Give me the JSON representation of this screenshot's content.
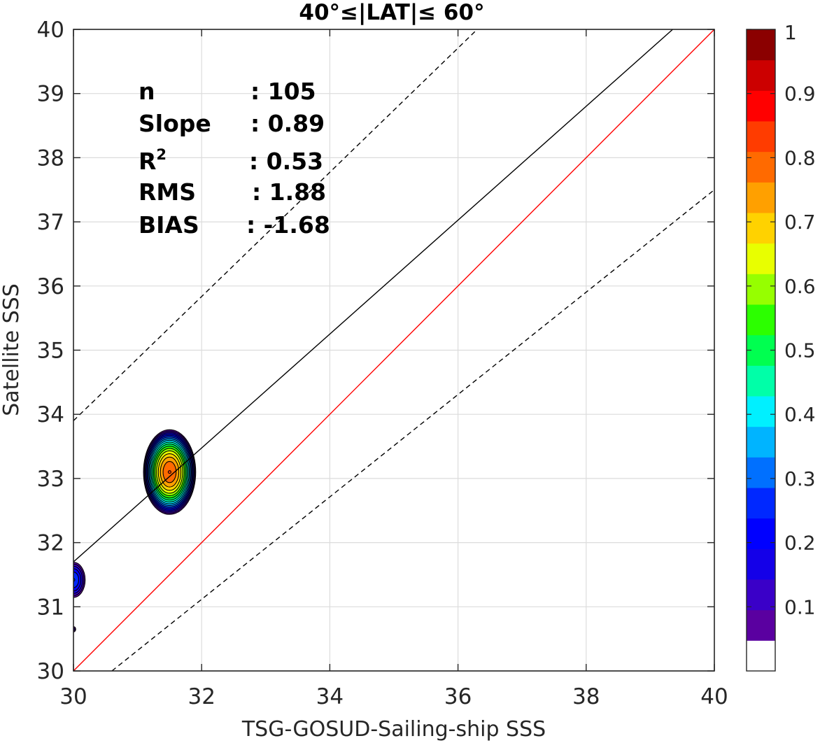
{
  "chart_data": {
    "type": "heatmap",
    "title": "40°≤|LAT|≤ 60°",
    "xlabel": "TSG-GOSUD-Sailing-ship SSS",
    "ylabel": "Satellite SSS",
    "xlim": [
      30,
      40
    ],
    "ylim": [
      30,
      40
    ],
    "xticks": [
      "30",
      "32",
      "34",
      "36",
      "38",
      "40"
    ],
    "yticks": [
      "30",
      "31",
      "32",
      "33",
      "34",
      "35",
      "36",
      "37",
      "38",
      "39",
      "40"
    ],
    "grid": true,
    "stats": [
      {
        "label": "n",
        "value": ": 105"
      },
      {
        "label": "Slope",
        "value": ": 0.89"
      },
      {
        "label": "R",
        "sup": "2",
        "value": ": 0.53"
      },
      {
        "label": "RMS",
        "value": ": 1.88"
      },
      {
        "label": "BIAS",
        "value": ": -1.68"
      }
    ],
    "lines": [
      {
        "name": "one-to-one",
        "style": "solid",
        "color": "#ff0000",
        "points": [
          [
            30,
            30
          ],
          [
            40,
            40
          ]
        ]
      },
      {
        "name": "regression",
        "style": "solid",
        "color": "#000000",
        "points": [
          [
            30,
            31.7
          ],
          [
            39.35,
            40
          ]
        ]
      },
      {
        "name": "upper-bound",
        "style": "dashed",
        "color": "#000000",
        "points": [
          [
            30,
            33.9
          ],
          [
            36.3,
            40
          ]
        ]
      },
      {
        "name": "lower-bound",
        "style": "dashed",
        "color": "#000000",
        "points": [
          [
            30.6,
            30
          ],
          [
            40,
            37.5
          ]
        ]
      }
    ],
    "density_blobs": [
      {
        "center": [
          31.5,
          33.1
        ],
        "rx": 0.42,
        "ry": 0.68,
        "peak": 0.85
      },
      {
        "center": [
          30.0,
          31.42
        ],
        "rx": 0.2,
        "ry": 0.3,
        "peak": 0.3
      },
      {
        "center": [
          30.0,
          30.65
        ],
        "rx": 0.05,
        "ry": 0.06,
        "peak": 0.1
      }
    ],
    "colorbar": {
      "ticks": [
        "0.1",
        "0.2",
        "0.3",
        "0.4",
        "0.5",
        "0.6",
        "0.7",
        "0.8",
        "0.9",
        "1"
      ],
      "levels": [
        0,
        0.05,
        0.1,
        0.15,
        0.2,
        0.25,
        0.3,
        0.35,
        0.4,
        0.45,
        0.5,
        0.55,
        0.6,
        0.65,
        0.7,
        0.75,
        0.8,
        0.85,
        0.9,
        0.95,
        1
      ],
      "colors": [
        "#ffffff",
        "#5a00a0",
        "#3a00c8",
        "#1400e8",
        "#0000ff",
        "#0028ff",
        "#0070ff",
        "#00b4ff",
        "#00f0ff",
        "#00ffa8",
        "#00ff50",
        "#2cff00",
        "#96ff00",
        "#e8ff00",
        "#ffd200",
        "#ffa000",
        "#ff6a00",
        "#ff3c00",
        "#ff0000",
        "#cc0000",
        "#8b0000"
      ]
    }
  }
}
